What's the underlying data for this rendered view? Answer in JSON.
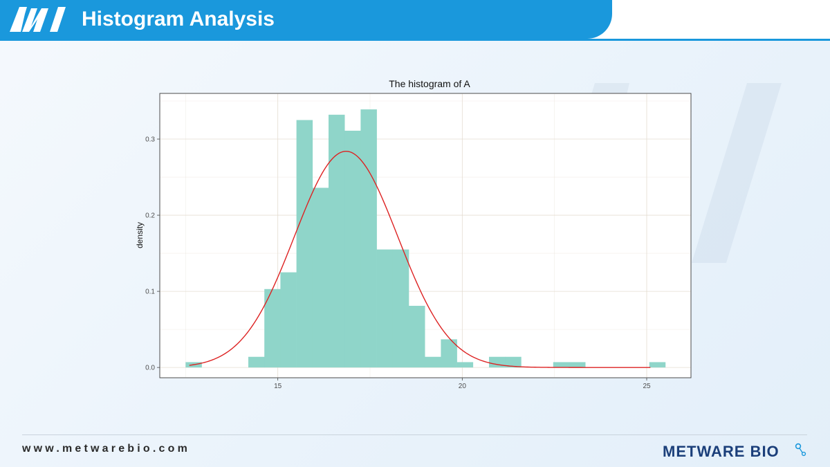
{
  "header": {
    "title": "Histogram Analysis",
    "accent_color": "#1a98dc",
    "logo_icon": "mw-logo-icon"
  },
  "footer": {
    "url": "www.metwarebio.com",
    "brand_text": "METWARE BIO",
    "brand_color": "#1b3f7a"
  },
  "chart_data": {
    "type": "bar",
    "title": "The histogram of A",
    "xlabel": "",
    "ylabel": "density",
    "xlim": [
      11.8,
      26.2
    ],
    "ylim": [
      -0.0135,
      0.36
    ],
    "x_ticks": [
      15,
      20,
      25
    ],
    "y_ticks": [
      0.0,
      0.1,
      0.2,
      0.3
    ],
    "y_tick_labels": [
      "0.0",
      "0.1",
      "0.2",
      "0.3"
    ],
    "grid": true,
    "bar_color": "#8fd5c9",
    "curve_color": "#dd2222",
    "bin_width": 0.435,
    "bins": [
      {
        "x0": 12.5,
        "x1": 12.935,
        "density": 0.007
      },
      {
        "x0": 14.2,
        "x1": 14.635,
        "density": 0.014
      },
      {
        "x0": 14.635,
        "x1": 15.07,
        "density": 0.103
      },
      {
        "x0": 15.07,
        "x1": 15.505,
        "density": 0.125
      },
      {
        "x0": 15.505,
        "x1": 15.94,
        "density": 0.325
      },
      {
        "x0": 15.94,
        "x1": 16.375,
        "density": 0.236
      },
      {
        "x0": 16.375,
        "x1": 16.81,
        "density": 0.332
      },
      {
        "x0": 16.81,
        "x1": 17.245,
        "density": 0.311
      },
      {
        "x0": 17.245,
        "x1": 17.68,
        "density": 0.339
      },
      {
        "x0": 17.68,
        "x1": 18.115,
        "density": 0.155
      },
      {
        "x0": 18.115,
        "x1": 18.55,
        "density": 0.155
      },
      {
        "x0": 18.55,
        "x1": 18.985,
        "density": 0.081
      },
      {
        "x0": 18.985,
        "x1": 19.42,
        "density": 0.014
      },
      {
        "x0": 19.42,
        "x1": 19.855,
        "density": 0.037
      },
      {
        "x0": 19.855,
        "x1": 20.29,
        "density": 0.007
      },
      {
        "x0": 20.725,
        "x1": 21.16,
        "density": 0.014
      },
      {
        "x0": 21.16,
        "x1": 21.595,
        "density": 0.014
      },
      {
        "x0": 22.465,
        "x1": 22.9,
        "density": 0.007
      },
      {
        "x0": 22.9,
        "x1": 23.335,
        "density": 0.007
      },
      {
        "x0": 25.07,
        "x1": 25.505,
        "density": 0.007
      }
    ],
    "density_curve": {
      "type": "normal",
      "mean": 16.85,
      "sd": 1.4,
      "peak": 0.284,
      "x_range": [
        12.6,
        25.1
      ]
    }
  }
}
